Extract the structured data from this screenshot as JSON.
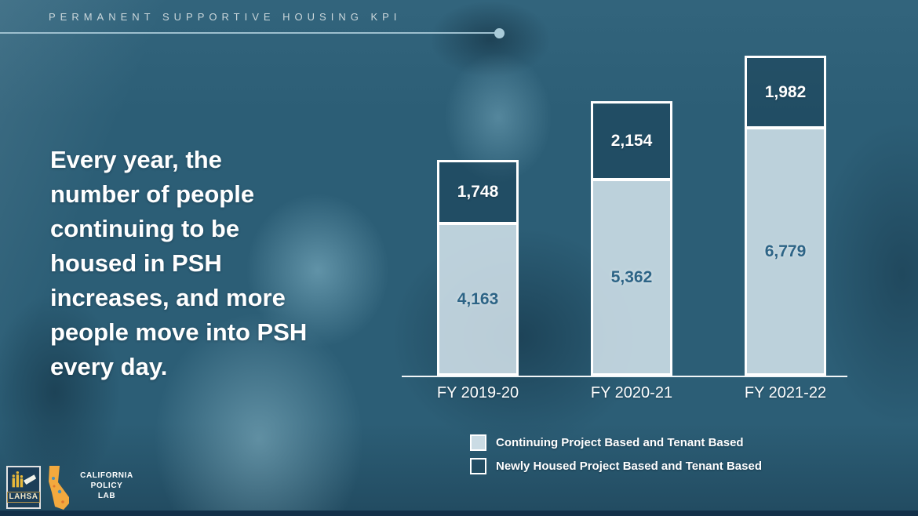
{
  "header": {
    "title": "PERMANENT SUPPORTIVE HOUSING KPI"
  },
  "headline": {
    "text": "Every year, the\nnumber of people\ncontinuing to be\nhoused in PSH\nincreases, and more\npeople move into PSH\nevery day."
  },
  "chart_data": {
    "type": "bar",
    "stacked": true,
    "categories": [
      "FY 2019-20",
      "FY 2020-21",
      "FY 2021-22"
    ],
    "series": [
      {
        "name": "Continuing Project Based and Tenant Based",
        "values": [
          4163,
          5362,
          6779
        ],
        "labels": [
          "4,163",
          "5,362",
          "6,779"
        ],
        "color": "rgba(214,229,237,0.85)",
        "label_color": "#2d6486"
      },
      {
        "name": "Newly Housed Project Based and Tenant Based",
        "values": [
          1748,
          2154,
          1982
        ],
        "labels": [
          "1,748",
          "2,154",
          "1,982"
        ],
        "color": "rgba(10,40,58,0.30)",
        "label_color": "#ffffff"
      }
    ],
    "totals": [
      5911,
      7516,
      8761
    ],
    "xlabel": "",
    "ylabel": "",
    "axis_line_color": "#f2f6f8",
    "grid": false,
    "legend_position": "bottom"
  },
  "legend": {
    "items": [
      {
        "label": "Continuing Project Based and Tenant Based",
        "swatch": "light-filled",
        "swatch_color": "#cadbe4"
      },
      {
        "label": "Newly Housed Project Based and Tenant Based",
        "swatch": "white-outlined",
        "swatch_color": "transparent-dark"
      }
    ]
  },
  "logos": {
    "lahsa": {
      "label": "LAHSA"
    },
    "cpl": {
      "text": "CALIFORNIA\nPOLICY\nLAB"
    }
  },
  "colors": {
    "background_tint": "#2c5e76",
    "accent_light": "#cadbe4",
    "rule": "#9dbfce",
    "value_dark": "#2d6486",
    "bottom_strip": "#133049"
  }
}
